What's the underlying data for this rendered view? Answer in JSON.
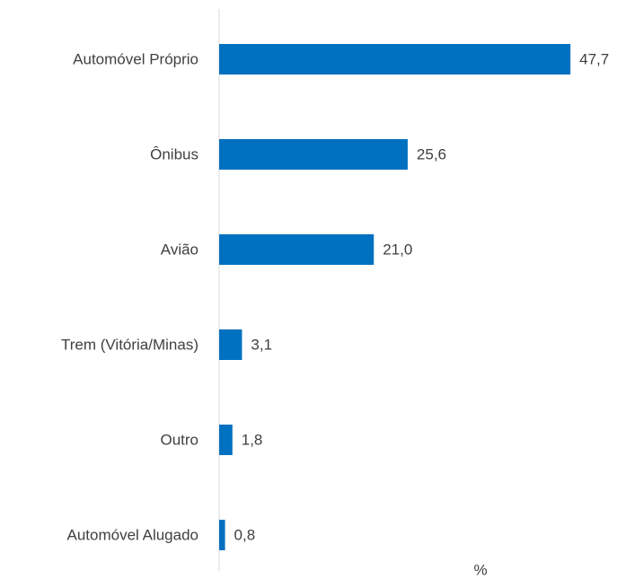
{
  "chart_data": {
    "type": "hbar",
    "categories": [
      "Automóvel Próprio",
      "Ônibus",
      "Avião",
      "Trem (Vitória/Minas)",
      "Outro",
      "Automóvel Alugado"
    ],
    "values": [
      47.7,
      25.6,
      21.0,
      3.1,
      1.8,
      0.8
    ],
    "value_labels": [
      "47,7",
      "25,6",
      "21,0",
      "3,1",
      "1,8",
      "0,8"
    ],
    "color": "#0070c0",
    "xlabel": "%",
    "xlim": [
      0,
      50
    ]
  }
}
